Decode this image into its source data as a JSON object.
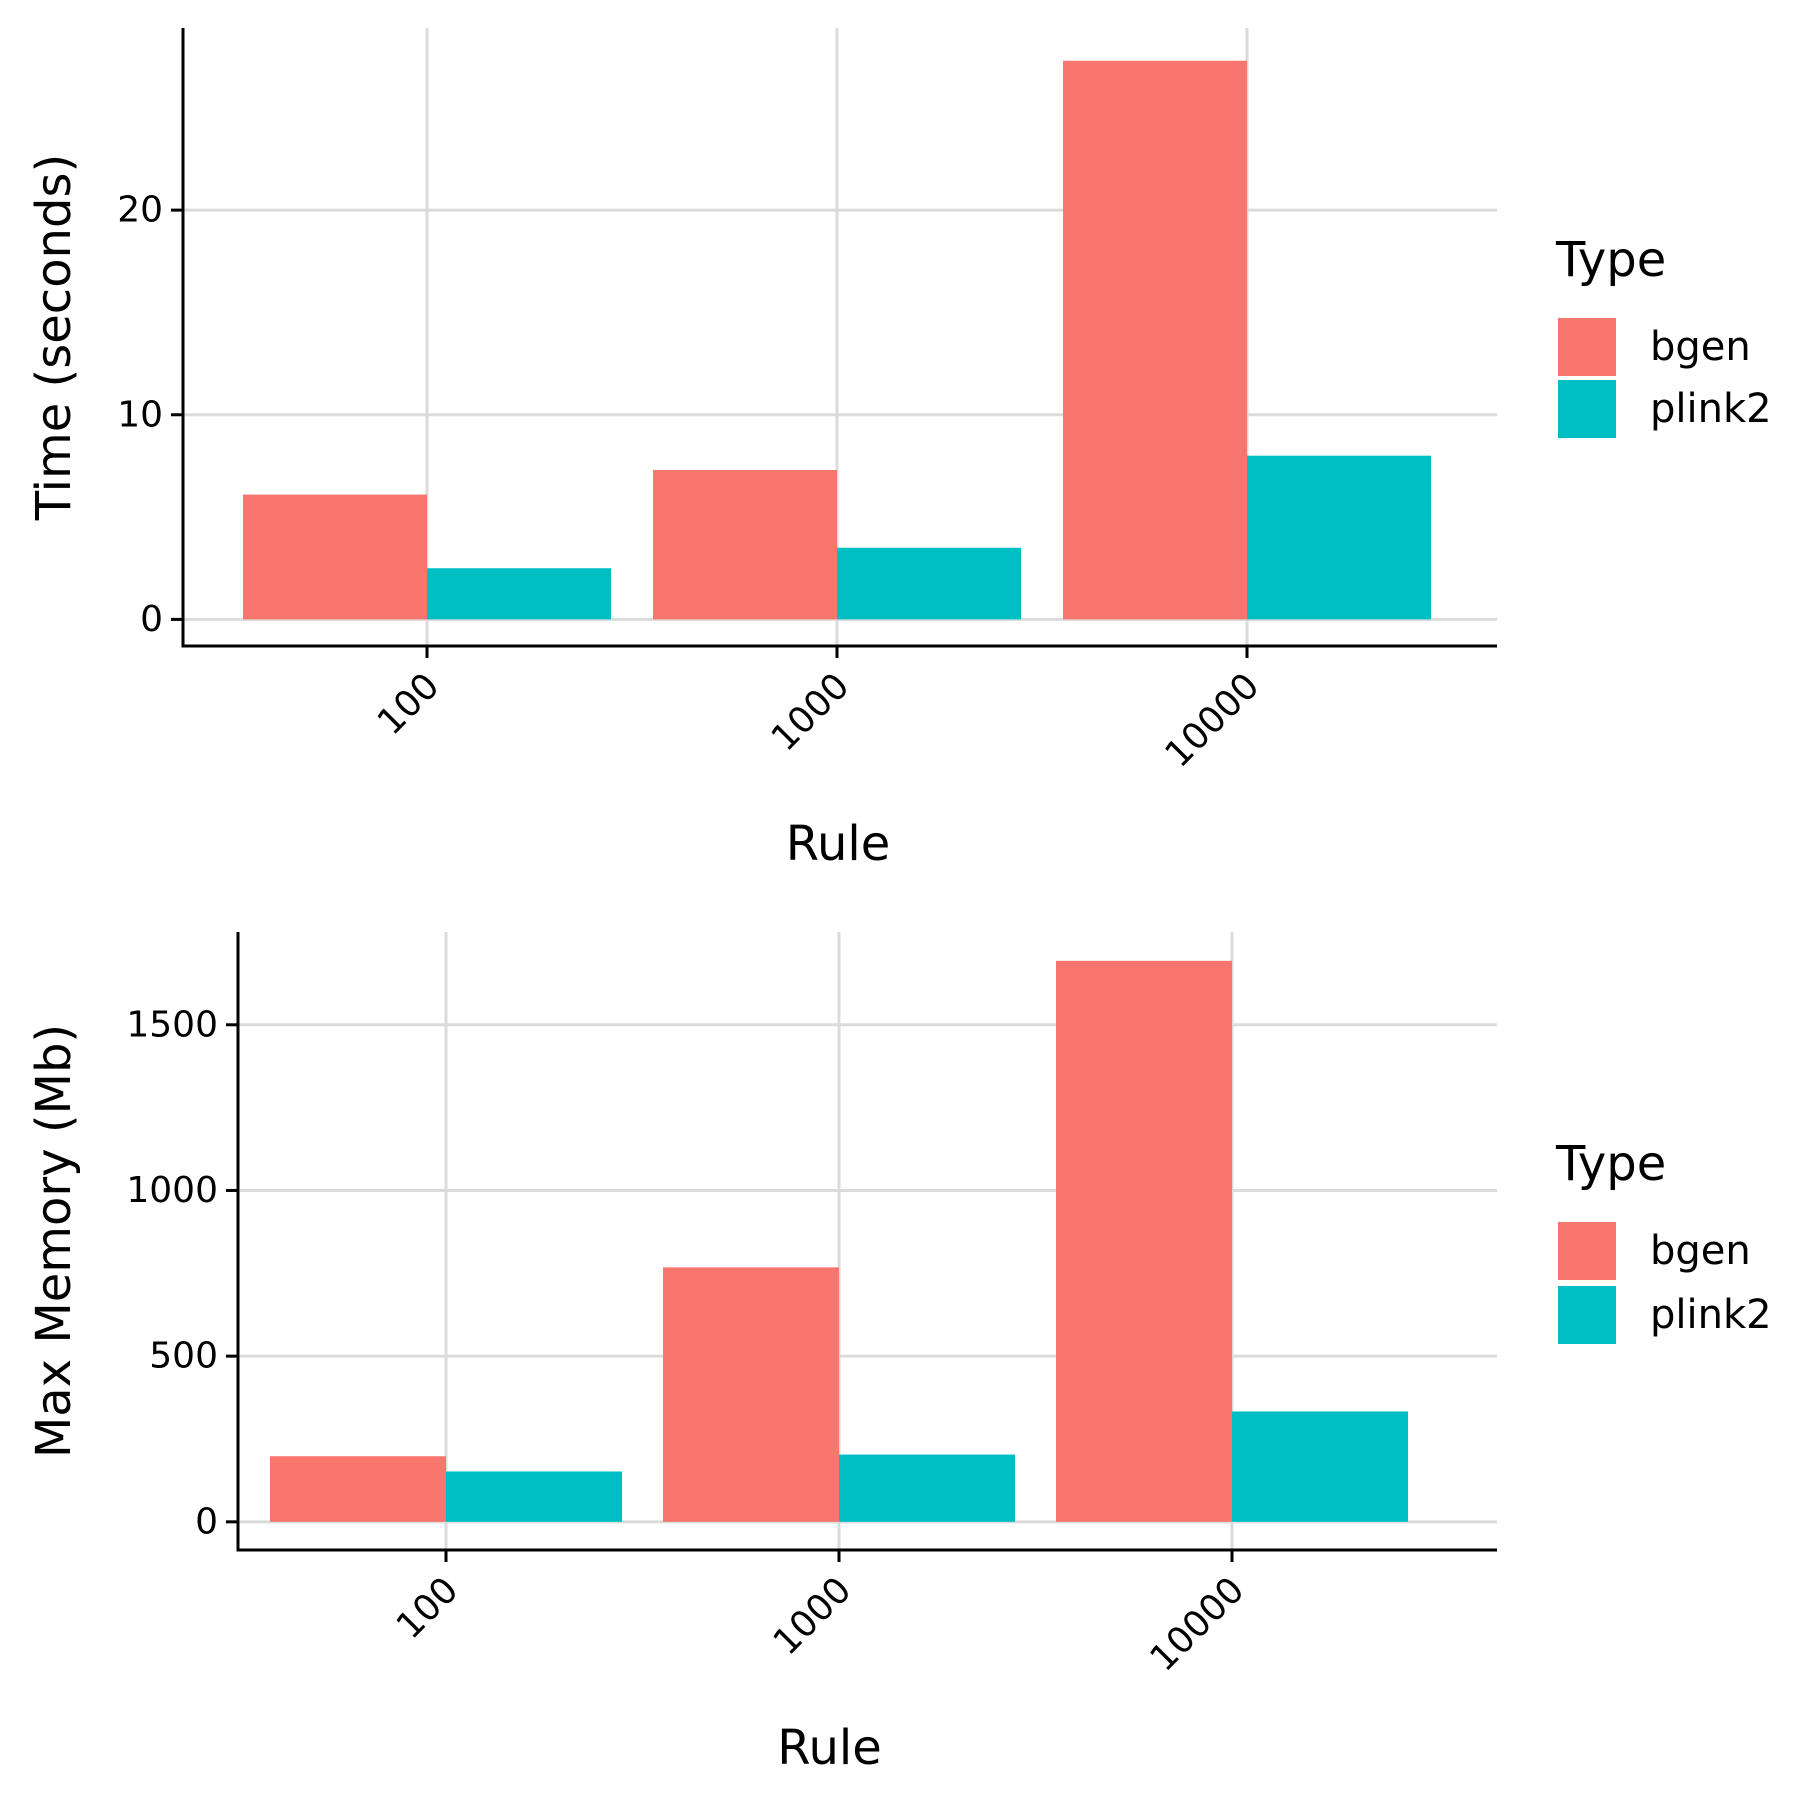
{
  "chart_data": [
    {
      "type": "bar",
      "categories": [
        "100",
        "1000",
        "10000"
      ],
      "series": [
        {
          "name": "bgen",
          "values": [
            6.1,
            7.3,
            27.3
          ]
        },
        {
          "name": "plink2",
          "values": [
            2.5,
            3.5,
            8.0
          ]
        }
      ],
      "xlabel": "Rule",
      "ylabel": "Time (seconds)",
      "ylim": [
        -1.3,
        28.9
      ],
      "yticks": [
        "0",
        "10",
        "20"
      ],
      "grid": true,
      "legend": {
        "title": "Type",
        "position": "right"
      }
    },
    {
      "type": "bar",
      "categories": [
        "100",
        "1000",
        "10000"
      ],
      "series": [
        {
          "name": "bgen",
          "values": [
            198,
            768,
            1693
          ]
        },
        {
          "name": "plink2",
          "values": [
            152,
            203,
            333
          ]
        }
      ],
      "xlabel": "Rule",
      "ylabel": "Max Memory (Mb)",
      "ylim": [
        -85,
        1780
      ],
      "yticks": [
        "0",
        "500",
        "1000",
        "1500"
      ],
      "grid": true,
      "legend": {
        "title": "Type",
        "position": "right"
      }
    }
  ],
  "colors": {
    "bgen": "#F8766D",
    "plink2": "#00BFC4",
    "grid": "#DBDBDB",
    "axis": "#000000"
  }
}
